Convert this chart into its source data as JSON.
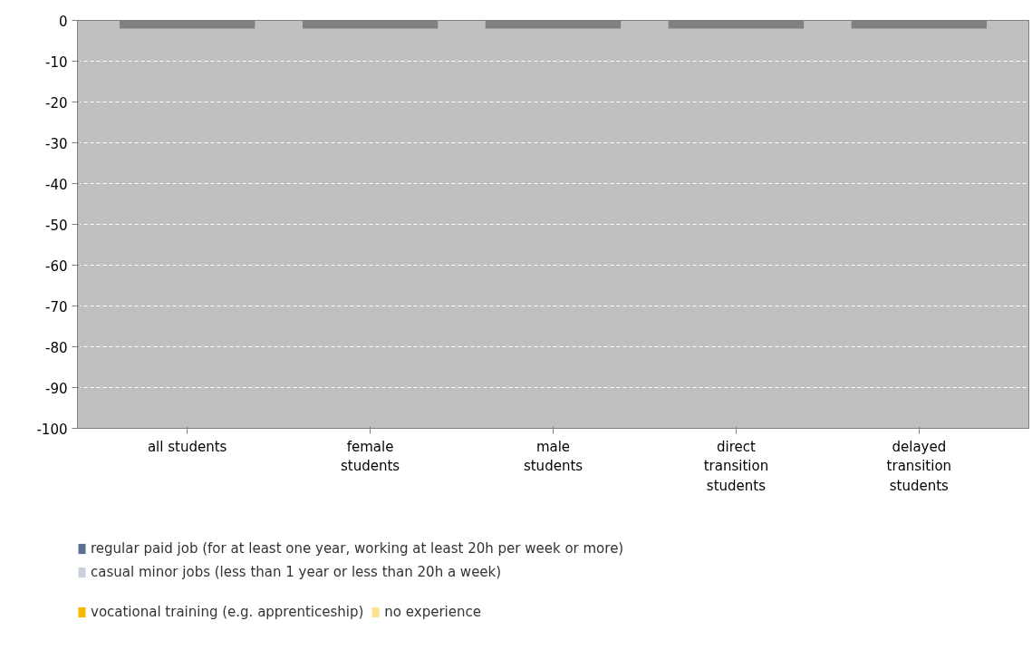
{
  "chart_data": {
    "type": "bar",
    "categories": [
      "all students",
      "female\nstudents",
      "male\nstudents",
      "direct\ntransition\nstudents",
      "delayed\ntransition\nstudents"
    ],
    "series": [
      {
        "color": "#808080",
        "values": [
          -2,
          -2,
          -2,
          -2,
          -2
        ]
      },
      {
        "name": "regular paid job (for at least one year, working at least 20h per week or more)",
        "color": "#5b6f8e",
        "values": [
          null,
          null,
          null,
          null,
          null
        ]
      },
      {
        "name": "casual minor jobs (less than 1 year or less than 20h a week)",
        "color": "#c9d1de",
        "values": [
          null,
          null,
          null,
          null,
          null
        ]
      },
      {
        "name": "vocational training (e.g. apprenticeship)",
        "color": "#f6b900",
        "values": [
          null,
          null,
          null,
          null,
          null
        ]
      },
      {
        "name": "no experience",
        "color": "#fde18c",
        "values": [
          null,
          null,
          null,
          null,
          null
        ]
      }
    ],
    "ylim": [
      -100,
      0
    ],
    "yticks": [
      -100,
      -90,
      -80,
      -70,
      -60,
      -50,
      -40,
      -30,
      -20,
      -10,
      0
    ],
    "grid": "y",
    "legend": "bottom"
  }
}
